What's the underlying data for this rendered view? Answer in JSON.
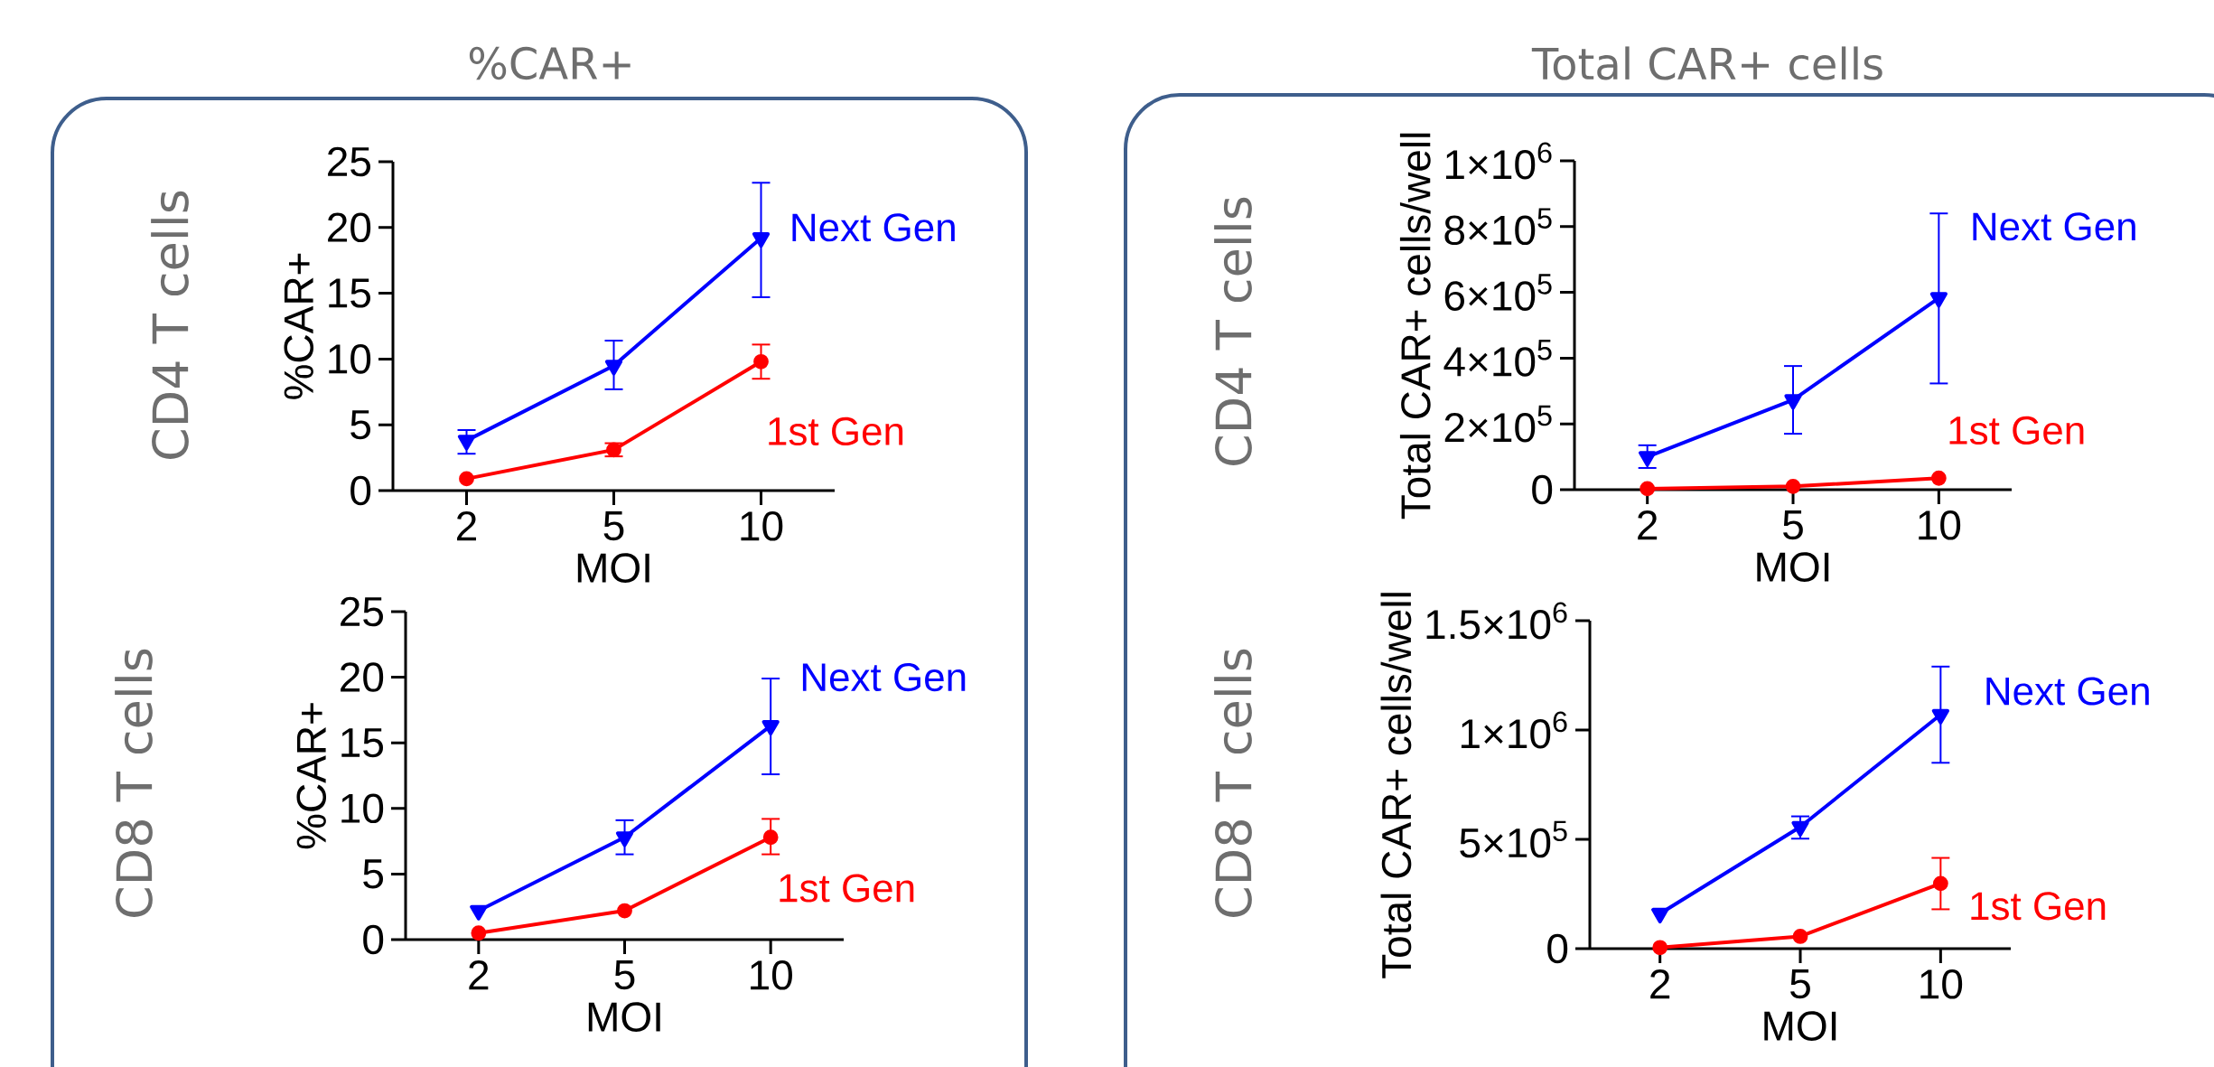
{
  "chart_data": [
    {
      "type": "line",
      "title": "%CAR+",
      "xlabel": "MOI",
      "ylabel": "%CAR+",
      "categories": [
        "2",
        "5",
        "10"
      ],
      "ylim": [
        0,
        25
      ],
      "yticks": [
        0,
        5,
        10,
        15,
        20,
        25
      ],
      "annotations": [
        "CD4 T cells"
      ],
      "series": [
        {
          "name": "Next Gen",
          "color": "#0000ff",
          "marker": "triangle",
          "values": [
            3.8,
            9.5,
            19.2
          ],
          "errors": [
            [
              2.8,
              4.6
            ],
            [
              7.7,
              11.4
            ],
            [
              14.7,
              23.4
            ]
          ]
        },
        {
          "name": "1st Gen",
          "color": "#ff0000",
          "marker": "circle",
          "values": [
            0.9,
            3.1,
            9.8
          ],
          "errors": [
            null,
            [
              2.6,
              3.6
            ],
            [
              8.5,
              11.1
            ]
          ]
        }
      ]
    },
    {
      "type": "line",
      "xlabel": "MOI",
      "ylabel": "%CAR+",
      "categories": [
        "2",
        "5",
        "10"
      ],
      "ylim": [
        0,
        25
      ],
      "yticks": [
        0,
        5,
        10,
        15,
        20,
        25
      ],
      "annotations": [
        "CD8 T cells"
      ],
      "series": [
        {
          "name": "Next Gen",
          "color": "#0000ff",
          "marker": "triangle",
          "values": [
            2.2,
            7.8,
            16.3
          ],
          "errors": [
            null,
            [
              6.5,
              9.1
            ],
            [
              12.6,
              19.9
            ]
          ]
        },
        {
          "name": "1st Gen",
          "color": "#ff0000",
          "marker": "circle",
          "values": [
            0.5,
            2.2,
            7.8
          ],
          "errors": [
            null,
            null,
            [
              6.5,
              9.2
            ]
          ]
        }
      ]
    },
    {
      "type": "line",
      "title": "Total CAR+ cells",
      "xlabel": "MOI",
      "ylabel": "Total CAR+ cells/well",
      "categories": [
        "2",
        "5",
        "10"
      ],
      "ylim": [
        0,
        1000000
      ],
      "yticks": [
        0,
        {
          "value": 200000,
          "label": "2×10$^{5}$"
        },
        {
          "value": 400000,
          "label": "4×10$^{5}$"
        },
        {
          "value": 600000,
          "label": "6×10$^{5}$"
        },
        {
          "value": 800000,
          "label": "8×10$^{5}$"
        },
        {
          "value": 1000000,
          "label": "1×10$^{6}$"
        }
      ],
      "annotations": [
        "CD4 T cells"
      ],
      "series": [
        {
          "name": "Next Gen",
          "color": "#0000ff",
          "marker": "triangle",
          "values": [
            100000,
            273000,
            583000
          ],
          "errors": [
            [
              66000,
              135000
            ],
            [
              170000,
              376000
            ],
            [
              323000,
              840000
            ]
          ]
        },
        {
          "name": "1st Gen",
          "color": "#ff0000",
          "marker": "circle",
          "values": [
            3000,
            10000,
            35000
          ]
        }
      ]
    },
    {
      "type": "line",
      "xlabel": "MOI",
      "ylabel": "Total CAR+ cells/well",
      "categories": [
        "2",
        "5",
        "10"
      ],
      "ylim": [
        0,
        1500000
      ],
      "yticks": [
        0,
        {
          "value": 500000,
          "label": "5×10$^{5}$"
        },
        {
          "value": 1000000,
          "label": "1×10$^{6}$"
        },
        {
          "value": 1500000,
          "label": "1.5×10$^{6}$"
        }
      ],
      "annotations": [
        "CD8 T cells"
      ],
      "series": [
        {
          "name": "Next Gen",
          "color": "#0000ff",
          "marker": "triangle",
          "values": [
            160000,
            557000,
            1070000
          ],
          "errors": [
            null,
            [
              503000,
              605000
            ],
            [
              850000,
              1290000
            ]
          ]
        },
        {
          "name": "1st Gen",
          "color": "#ff0000",
          "marker": "circle",
          "values": [
            5000,
            56000,
            298000
          ],
          "errors": [
            null,
            null,
            [
              180000,
              415000
            ]
          ]
        }
      ]
    }
  ]
}
